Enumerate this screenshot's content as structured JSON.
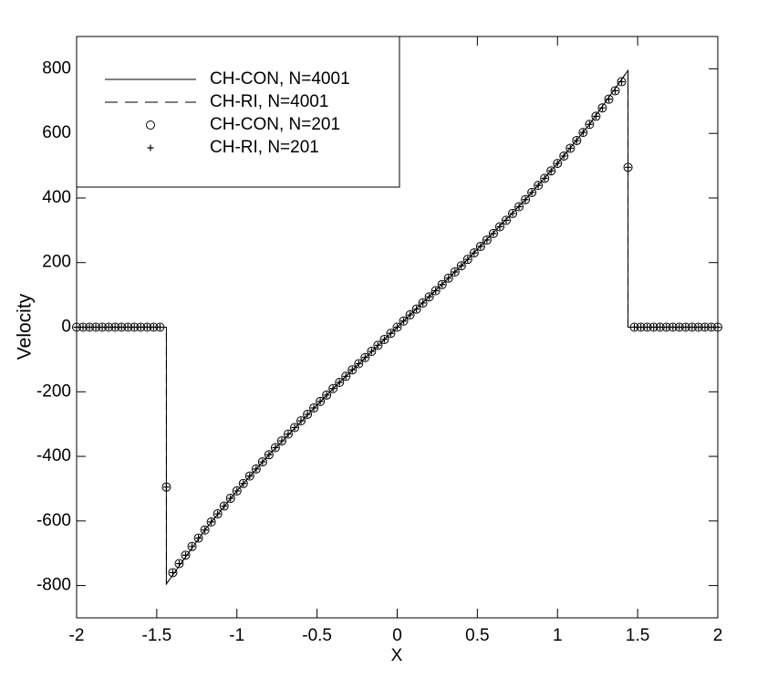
{
  "chart_data": {
    "type": "line",
    "xlabel": "X",
    "ylabel": "Velocity",
    "xlim": [
      -2,
      2
    ],
    "ylim": [
      -900,
      900
    ],
    "xticks": [
      -2,
      -1.5,
      -1,
      -0.5,
      0,
      0.5,
      1,
      1.5,
      2
    ],
    "yticks": [
      -800,
      -600,
      -400,
      -200,
      0,
      200,
      400,
      600,
      800
    ],
    "legend": "upper left",
    "x": [
      -2,
      -1.96,
      -1.92,
      -1.88,
      -1.84,
      -1.8,
      -1.76,
      -1.72,
      -1.68,
      -1.64,
      -1.6,
      -1.56,
      -1.52,
      -1.48,
      -1.44,
      -1.4,
      -1.36,
      -1.32,
      -1.28,
      -1.24,
      -1.2,
      -1.16,
      -1.12,
      -1.08,
      -1.04,
      -1,
      -0.96,
      -0.92,
      -0.88,
      -0.84,
      -0.8,
      -0.76,
      -0.72,
      -0.68,
      -0.64,
      -0.6,
      -0.56,
      -0.52,
      -0.48,
      -0.44,
      -0.4,
      -0.36,
      -0.32,
      -0.28,
      -0.24,
      -0.2,
      -0.16,
      -0.12,
      -0.08,
      -0.04,
      0,
      0.04,
      0.08,
      0.12,
      0.16,
      0.2,
      0.24,
      0.28,
      0.32,
      0.36,
      0.4,
      0.44,
      0.48,
      0.52,
      0.56,
      0.6,
      0.64,
      0.68,
      0.72,
      0.76,
      0.8,
      0.84,
      0.88,
      0.92,
      0.96,
      1,
      1.04,
      1.08,
      1.12,
      1.16,
      1.2,
      1.24,
      1.28,
      1.32,
      1.36,
      1.4,
      1.44,
      1.48,
      1.52,
      1.56,
      1.6,
      1.64,
      1.68,
      1.72,
      1.76,
      1.8,
      1.84,
      1.88,
      1.92,
      1.96,
      2
    ],
    "series": [
      {
        "name": "CH-CON, N=4001",
        "color": "#000000",
        "style": "solid",
        "x": [
          -2,
          -1.44,
          -1.44,
          -1.2,
          -1,
          -0.8,
          -0.4,
          0,
          0.4,
          0.8,
          1,
          1.2,
          1.44,
          1.44,
          2
        ],
        "values": [
          0,
          0,
          -795,
          -628,
          -507,
          -395,
          -190,
          0,
          190,
          395,
          507,
          628,
          795,
          0,
          0
        ]
      },
      {
        "name": "CH-RI, N=4001",
        "color": "#000000",
        "style": "dashed",
        "x": [
          -2,
          -1.44,
          -1.44,
          -1.2,
          -1,
          -0.8,
          -0.4,
          0,
          0.4,
          0.8,
          1,
          1.2,
          1.44,
          1.44,
          2
        ],
        "values": [
          0,
          0,
          -795,
          -628,
          -507,
          -395,
          -190,
          0,
          190,
          395,
          507,
          628,
          795,
          0,
          0
        ]
      },
      {
        "name": "CH-CON, N=201",
        "color": "#000000",
        "style": "circle",
        "values": [
          0,
          0,
          0,
          0,
          0,
          0,
          0,
          0,
          0,
          0,
          0,
          0,
          0,
          0,
          -495,
          -760,
          -732,
          -706,
          -679,
          -653,
          -628,
          -603,
          -578,
          -554,
          -530,
          -507,
          -484,
          -461,
          -439,
          -417,
          -395,
          -373,
          -352,
          -331,
          -311,
          -290,
          -270,
          -250,
          -230,
          -210,
          -190,
          -171,
          -152,
          -132,
          -113,
          -94,
          -75,
          -56,
          -38,
          -19,
          0,
          19,
          38,
          56,
          75,
          94,
          113,
          132,
          152,
          171,
          190,
          210,
          230,
          250,
          270,
          290,
          311,
          331,
          352,
          373,
          395,
          417,
          439,
          461,
          484,
          507,
          530,
          554,
          578,
          603,
          628,
          653,
          679,
          706,
          732,
          760,
          495,
          0,
          0,
          0,
          0,
          0,
          0,
          0,
          0,
          0,
          0,
          0,
          0,
          0,
          0
        ]
      },
      {
        "name": "CH-RI, N=201",
        "color": "#000000",
        "style": "plus",
        "values": [
          0,
          0,
          0,
          0,
          0,
          0,
          0,
          0,
          0,
          0,
          0,
          0,
          0,
          0,
          -495,
          -760,
          -732,
          -706,
          -679,
          -653,
          -628,
          -603,
          -578,
          -554,
          -530,
          -507,
          -484,
          -461,
          -439,
          -417,
          -395,
          -373,
          -352,
          -331,
          -311,
          -290,
          -270,
          -250,
          -230,
          -210,
          -190,
          -171,
          -152,
          -132,
          -113,
          -94,
          -75,
          -56,
          -38,
          -19,
          0,
          19,
          38,
          56,
          75,
          94,
          113,
          132,
          152,
          171,
          190,
          210,
          230,
          250,
          270,
          290,
          311,
          331,
          352,
          373,
          395,
          417,
          439,
          461,
          484,
          507,
          530,
          554,
          578,
          603,
          628,
          653,
          679,
          706,
          732,
          760,
          495,
          0,
          0,
          0,
          0,
          0,
          0,
          0,
          0,
          0,
          0,
          0,
          0,
          0,
          0
        ]
      }
    ]
  }
}
